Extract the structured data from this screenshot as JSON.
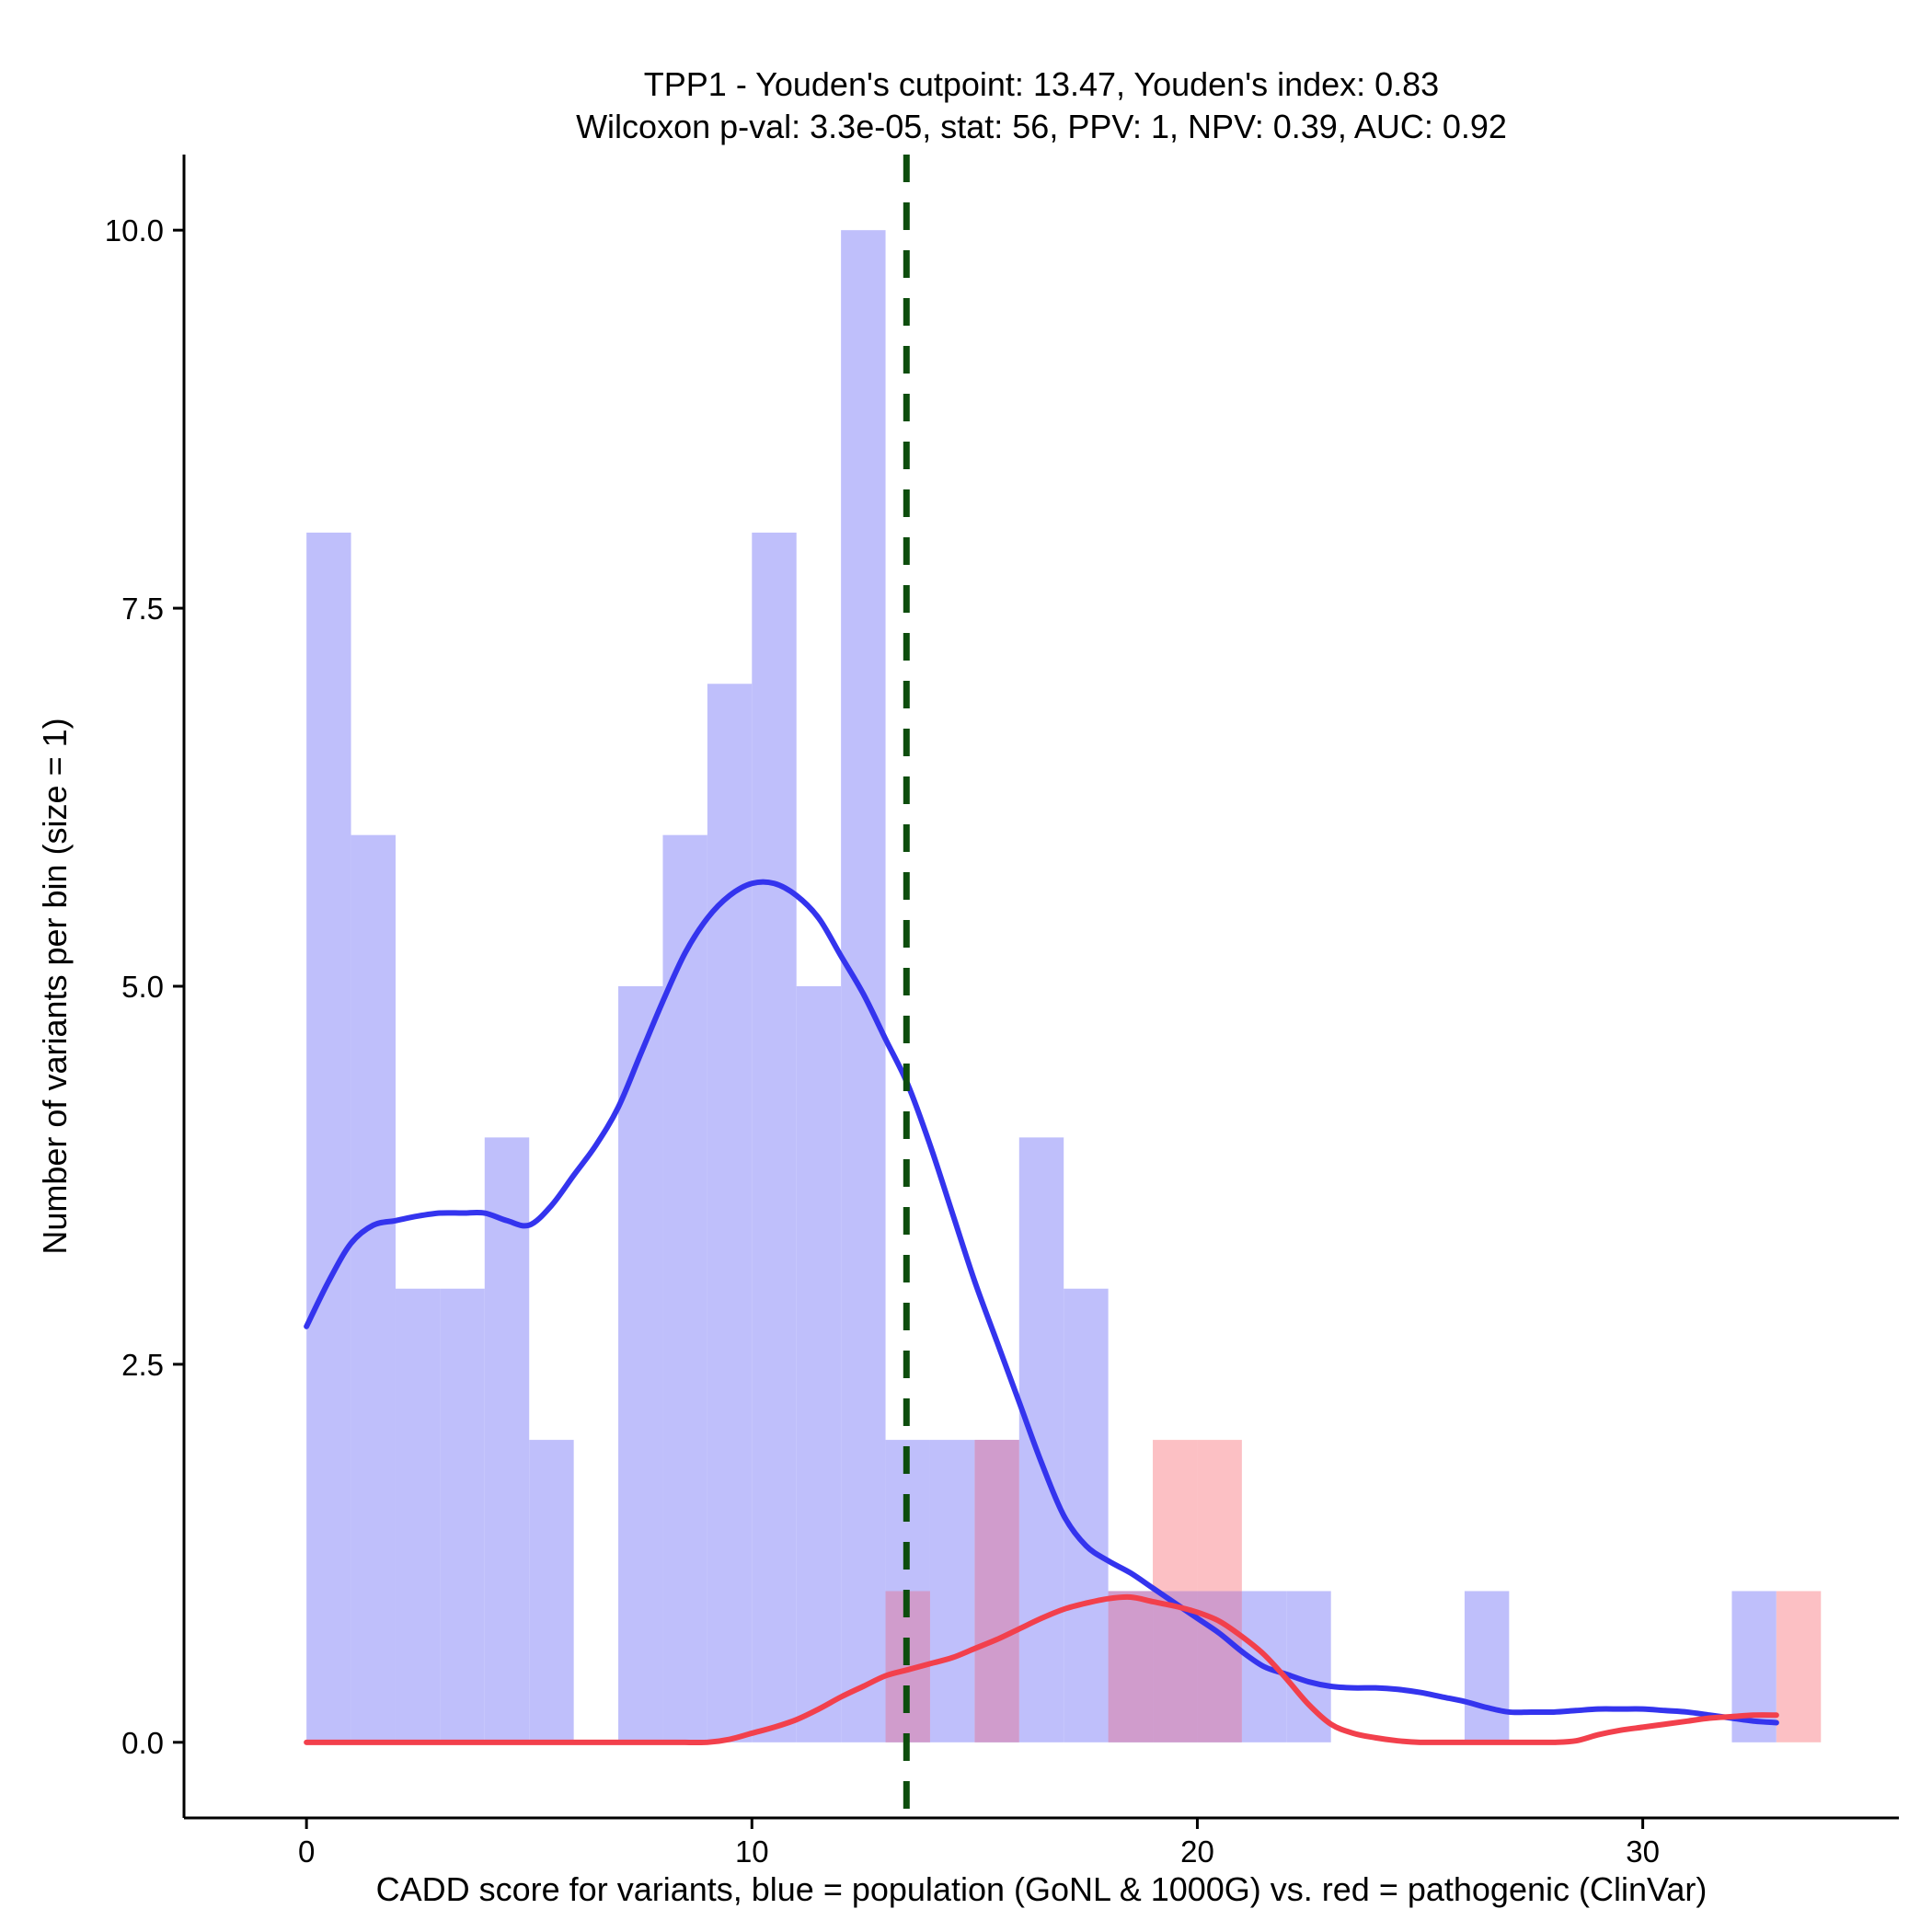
{
  "chart_data": {
    "type": "bar",
    "title": "TPP1 - Youden's cutpoint: 13.47, Youden's index: 0.83",
    "subtitle": "Wilcoxon p-val: 3.3e-05, stat: 56, PPV: 1, NPV: 0.39, AUC: 0.92",
    "xlabel": "CADD score for variants, blue = population (GoNL & 1000G) vs. red = pathogenic (ClinVar)",
    "ylabel": "Number of variants per bin (size = 1)",
    "xlim": [
      -2.75,
      35.75
    ],
    "ylim": [
      -0.5,
      10.5
    ],
    "x_ticks": [
      0,
      10,
      20,
      30
    ],
    "x_tick_labels": [
      "0",
      "10",
      "20",
      "30"
    ],
    "y_ticks": [
      0,
      2.5,
      5,
      7.5,
      10
    ],
    "y_tick_labels": [
      "0.0",
      "2.5",
      "5.0",
      "7.5",
      "10.0"
    ],
    "bin_size": 1,
    "cutpoint": 13.47,
    "colors": {
      "population_bar": "#bfbffb",
      "pathogenic_bar": "#fcc0c4",
      "overlap_bar": "#d09ccc",
      "population_line": "#3434ee",
      "pathogenic_line": "#f2404c",
      "cutpoint_line": "#0d4d0d"
    },
    "series": [
      {
        "name": "population (GoNL & 1000G)",
        "bin_starts": [
          0,
          1,
          2,
          3,
          4,
          5,
          6,
          7,
          8,
          9,
          10,
          11,
          12,
          13,
          14,
          15,
          16,
          17,
          18,
          19,
          20,
          21,
          22,
          23,
          24,
          25,
          26,
          27,
          28,
          29,
          30,
          31,
          32,
          33
        ],
        "values": [
          8,
          6,
          3,
          3,
          4,
          2,
          0,
          5,
          6,
          7,
          8,
          5,
          10,
          2,
          2,
          2,
          4,
          3,
          1,
          1,
          1,
          1,
          1,
          0,
          0,
          0,
          1,
          0,
          0,
          0,
          0,
          0,
          1,
          0
        ]
      },
      {
        "name": "pathogenic (ClinVar)",
        "bin_starts": [
          0,
          1,
          2,
          3,
          4,
          5,
          6,
          7,
          8,
          9,
          10,
          11,
          12,
          13,
          14,
          15,
          16,
          17,
          18,
          19,
          20,
          21,
          22,
          23,
          24,
          25,
          26,
          27,
          28,
          29,
          30,
          31,
          32,
          33
        ],
        "values": [
          0,
          0,
          0,
          0,
          0,
          0,
          0,
          0,
          0,
          0,
          0,
          0,
          0,
          1,
          0,
          2,
          0,
          0,
          1,
          2,
          2,
          0,
          0,
          0,
          0,
          0,
          0,
          0,
          0,
          0,
          0,
          0,
          0,
          1
        ]
      }
    ],
    "density_curves": [
      {
        "name": "population density",
        "x": [
          0,
          0.5,
          1,
          1.5,
          2,
          2.5,
          3,
          3.5,
          4,
          4.5,
          5,
          5.5,
          6,
          6.5,
          7,
          7.5,
          8,
          8.5,
          9,
          9.5,
          10,
          10.5,
          11,
          11.5,
          12,
          12.5,
          13,
          13.5,
          14,
          14.5,
          15,
          15.5,
          16,
          16.5,
          17,
          17.5,
          18,
          18.5,
          19,
          19.5,
          20,
          20.5,
          21,
          21.5,
          22,
          22.5,
          23,
          23.5,
          24,
          24.5,
          25,
          25.5,
          26,
          26.5,
          27,
          27.5,
          28,
          28.5,
          29,
          29.5,
          30,
          30.5,
          31,
          31.5,
          32,
          32.5,
          33
        ],
        "y": [
          2.75,
          3.05,
          3.3,
          3.42,
          3.45,
          3.48,
          3.5,
          3.5,
          3.5,
          3.45,
          3.42,
          3.55,
          3.75,
          3.95,
          4.2,
          4.55,
          4.9,
          5.22,
          5.45,
          5.6,
          5.68,
          5.68,
          5.6,
          5.45,
          5.2,
          4.95,
          4.65,
          4.35,
          3.95,
          3.5,
          3.05,
          2.65,
          2.25,
          1.85,
          1.5,
          1.3,
          1.2,
          1.12,
          1.02,
          0.92,
          0.82,
          0.72,
          0.6,
          0.5,
          0.45,
          0.4,
          0.37,
          0.36,
          0.36,
          0.35,
          0.33,
          0.3,
          0.27,
          0.23,
          0.2,
          0.2,
          0.2,
          0.21,
          0.22,
          0.22,
          0.22,
          0.21,
          0.2,
          0.18,
          0.16,
          0.14,
          0.13
        ]
      },
      {
        "name": "pathogenic density",
        "x": [
          0,
          0.5,
          1,
          1.5,
          2,
          2.5,
          3,
          3.5,
          4,
          4.5,
          5,
          5.5,
          6,
          6.5,
          7,
          7.5,
          8,
          8.5,
          9,
          9.5,
          10,
          10.5,
          11,
          11.5,
          12,
          12.5,
          13,
          13.5,
          14,
          14.5,
          15,
          15.5,
          16,
          16.5,
          17,
          17.5,
          18,
          18.5,
          19,
          19.5,
          20,
          20.5,
          21,
          21.5,
          22,
          22.5,
          23,
          23.5,
          24,
          24.5,
          25,
          25.5,
          26,
          26.5,
          27,
          27.5,
          28,
          28.5,
          29,
          29.5,
          30,
          30.5,
          31,
          31.5,
          32,
          32.5,
          33
        ],
        "y": [
          0,
          0,
          0,
          0,
          0,
          0,
          0,
          0,
          0,
          0,
          0,
          0,
          0,
          0,
          0,
          0,
          0,
          0,
          0,
          0.02,
          0.06,
          0.1,
          0.15,
          0.22,
          0.3,
          0.37,
          0.44,
          0.48,
          0.52,
          0.56,
          0.62,
          0.68,
          0.75,
          0.82,
          0.88,
          0.92,
          0.95,
          0.96,
          0.93,
          0.9,
          0.86,
          0.8,
          0.7,
          0.58,
          0.42,
          0.25,
          0.12,
          0.06,
          0.03,
          0.01,
          0,
          0,
          0,
          0,
          0,
          0,
          0,
          0.01,
          0.05,
          0.08,
          0.1,
          0.12,
          0.14,
          0.16,
          0.17,
          0.18,
          0.18
        ]
      }
    ]
  }
}
